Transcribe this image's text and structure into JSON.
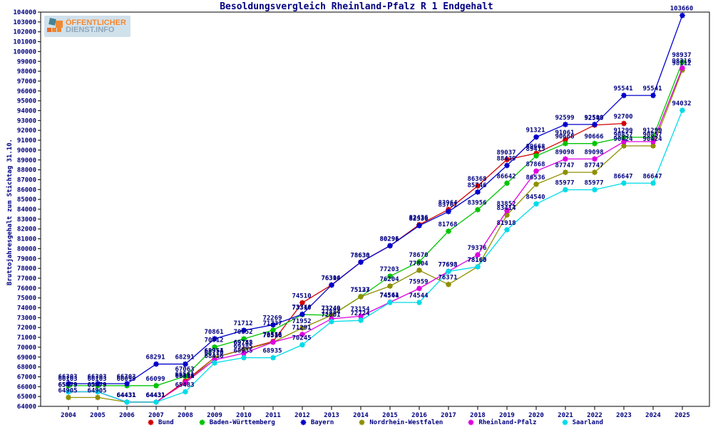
{
  "title": "Besoldungsvergleich Rheinland-Pfalz R 1 Endgehalt",
  "y_axis_title": "Bruttojahresgehalt zum Stichtag 31.10.",
  "logo": {
    "line1": "ÖFFENTLICHER",
    "line2": "DIENST.INFO"
  },
  "colors": {
    "text": "#000080",
    "frame": "#000000",
    "background": "#ffffff"
  },
  "chart_data": {
    "type": "line",
    "title": "Besoldungsvergleich Rheinland-Pfalz R 1 Endgehalt",
    "ylabel": "Bruttojahresgehalt zum Stichtag 31.10.",
    "xlabel": "",
    "ylim": [
      64000,
      104000
    ],
    "ytick_step": 1000,
    "grid": false,
    "legend_position": "bottom",
    "point_labels": true,
    "x": [
      2004,
      2005,
      2006,
      2007,
      2008,
      2009,
      2010,
      2011,
      2012,
      2013,
      2014,
      2015,
      2016,
      2017,
      2018,
      2019,
      2020,
      2021,
      2022,
      2023,
      2024,
      2025
    ],
    "series": [
      {
        "name": "Bund",
        "color": "#d40000",
        "values": [
          65479,
          65479,
          64431,
          64431,
          66561,
          68954,
          69782,
          70585,
          74510,
          76316,
          78638,
          80291,
          82436,
          83964,
          86368,
          89037,
          89668,
          91061,
          92540,
          92700,
          null,
          null
        ]
      },
      {
        "name": "Baden-Württemberg",
        "color": "#00c400",
        "values": [
          66103,
          66103,
          66099,
          66099,
          67063,
          70012,
          70852,
          71737,
          73310,
          73249,
          75137,
          77203,
          78670,
          81768,
          83956,
          86642,
          89415,
          90666,
          90666,
          91299,
          91299,
          98937
        ]
      },
      {
        "name": "Bayern",
        "color": "#0000cc",
        "values": [
          66303,
          66303,
          66303,
          68291,
          68291,
          70861,
          71712,
          72269,
          73346,
          76304,
          78630,
          80296,
          82336,
          83761,
          85746,
          88439,
          91321,
          92599,
          92599,
          95541,
          95541,
          103660
        ]
      },
      {
        "name": "Nordrhein-Westfalen",
        "color": "#8f8f00",
        "values": [
          64905,
          64905,
          64431,
          64431,
          66391,
          68951,
          69745,
          70516,
          71952,
          73240,
          75123,
          76204,
          77804,
          76371,
          78165,
          83414,
          86536,
          87747,
          87747,
          90424,
          90424,
          98112
        ]
      },
      {
        "name": "Rheinland-Pfalz",
        "color": "#e000e0",
        "values": [
          65479,
          65479,
          64431,
          64431,
          66416,
          68716,
          69385,
          70516,
          71291,
          72884,
          73154,
          74561,
          75959,
          77698,
          79376,
          83852,
          87868,
          89098,
          89098,
          90857,
          90857,
          98316
        ]
      },
      {
        "name": "Saarland",
        "color": "#00dce8",
        "values": [
          65479,
          65479,
          64431,
          64431,
          65483,
          68416,
          68935,
          68935,
          70245,
          72601,
          72724,
          74544,
          74544,
          77693,
          78160,
          81918,
          84540,
          85977,
          85977,
          86647,
          86647,
          94032
        ]
      }
    ]
  }
}
